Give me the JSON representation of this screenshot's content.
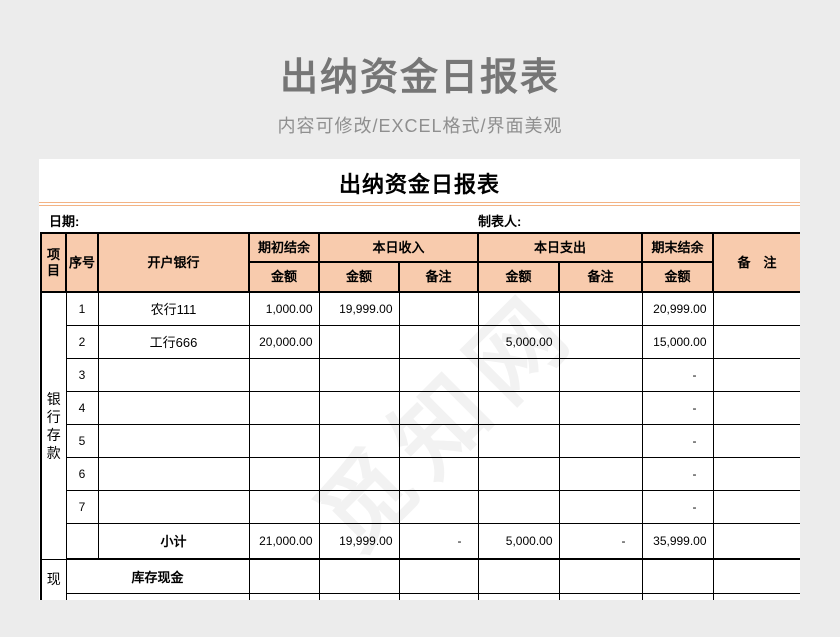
{
  "banner": {
    "title": "出纳资金日报表",
    "subtitle": "内容可修改/EXCEL格式/界面美观"
  },
  "sheet": {
    "title": "出纳资金日报表",
    "date_label": "日期:",
    "preparer_label": "制表人:",
    "watermark": "觅知网",
    "table": {
      "headers": {
        "item": "项目",
        "seq": "序号",
        "bank": "开户银行",
        "opening": "期初结余",
        "income": "本日收入",
        "expense": "本日支出",
        "closing": "期末结余",
        "amount": "金额",
        "note": "备注",
        "remark": "备　注"
      },
      "sections": {
        "bank": "银行存款",
        "cash": "现"
      },
      "cash_label": "库存现金",
      "rows": [
        {
          "seq": "1",
          "bank": "农行111",
          "opening": "1,000.00",
          "income_amt": "19,999.00",
          "income_note": "",
          "expense_amt": "",
          "expense_note": "",
          "closing": "20,999.00",
          "note": ""
        },
        {
          "seq": "2",
          "bank": "工行666",
          "opening": "20,000.00",
          "income_amt": "",
          "income_note": "",
          "expense_amt": "5,000.00",
          "expense_note": "",
          "closing": "15,000.00",
          "note": ""
        },
        {
          "seq": "3",
          "bank": "",
          "opening": "",
          "income_amt": "",
          "income_note": "",
          "expense_amt": "",
          "expense_note": "",
          "closing": "-",
          "note": ""
        },
        {
          "seq": "4",
          "bank": "",
          "opening": "",
          "income_amt": "",
          "income_note": "",
          "expense_amt": "",
          "expense_note": "",
          "closing": "-",
          "note": ""
        },
        {
          "seq": "5",
          "bank": "",
          "opening": "",
          "income_amt": "",
          "income_note": "",
          "expense_amt": "",
          "expense_note": "",
          "closing": "-",
          "note": ""
        },
        {
          "seq": "6",
          "bank": "",
          "opening": "",
          "income_amt": "",
          "income_note": "",
          "expense_amt": "",
          "expense_note": "",
          "closing": "-",
          "note": ""
        },
        {
          "seq": "7",
          "bank": "",
          "opening": "",
          "income_amt": "",
          "income_note": "",
          "expense_amt": "",
          "expense_note": "",
          "closing": "-",
          "note": ""
        }
      ],
      "subtotal": {
        "label": "小计",
        "opening": "21,000.00",
        "income_amt": "19,999.00",
        "income_note": "-",
        "expense_amt": "5,000.00",
        "expense_note": "-",
        "closing": "35,999.00",
        "note": ""
      }
    }
  },
  "colors": {
    "background": "#ececec",
    "sheet": "#ffffff",
    "header_fill": "#f8cbad",
    "rule_orange": "#f3b384",
    "banner_text": "#767676",
    "border": "#000000"
  }
}
